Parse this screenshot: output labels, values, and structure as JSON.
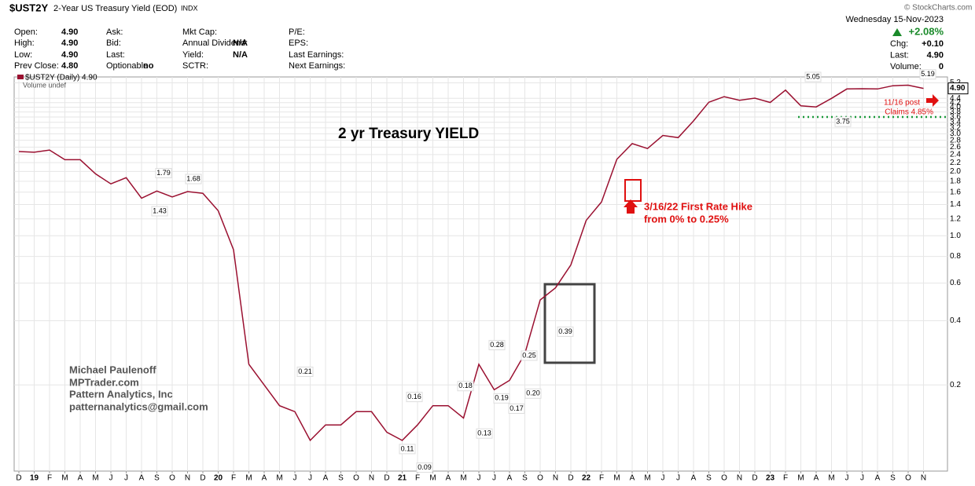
{
  "header": {
    "symbol": "$UST2Y",
    "name": "2-Year US Treasury Yield (EOD)",
    "exchange": "INDX",
    "date": "Wednesday  15-Nov-2023",
    "copyright": "© StockCharts.com",
    "change_pct": "+2.08%",
    "quote_columns": [
      [
        {
          "label": "Open:",
          "value": "4.90"
        },
        {
          "label": "High:",
          "value": "4.90"
        },
        {
          "label": "Low:",
          "value": "4.90"
        },
        {
          "label": "Prev Close:",
          "value": "4.80"
        }
      ],
      [
        {
          "label": "Ask:"
        },
        {
          "label": "Bid:"
        },
        {
          "label": "Last:"
        },
        {
          "label": "Optionable",
          "value": "no"
        }
      ],
      [
        {
          "label": "Mkt Cap:"
        },
        {
          "label": "Annual Dividend:",
          "value": "N/A"
        },
        {
          "label": "Yield:",
          "value": "N/A"
        },
        {
          "label": "SCTR:"
        }
      ],
      [
        {
          "label": "P/E:"
        },
        {
          "label": "EPS:"
        },
        {
          "label": "Last Earnings:"
        },
        {
          "label": "Next Earnings:"
        }
      ]
    ],
    "summary": [
      {
        "label": "Chg:",
        "value": "+0.10"
      },
      {
        "label": "Last:",
        "value": "4.90"
      },
      {
        "label": "Volume:",
        "value": "0"
      }
    ]
  },
  "chart_data": {
    "type": "line",
    "title": "2 yr Treasury YIELD",
    "legend": "$UST2Y (Daily) 4.90",
    "volume_note": "Volume undef",
    "log_scale": true,
    "grid": true,
    "categories": [
      "D",
      "19",
      "F",
      "M",
      "A",
      "M",
      "J",
      "J",
      "A",
      "S",
      "O",
      "N",
      "D",
      "20",
      "F",
      "M",
      "A",
      "M",
      "J",
      "J",
      "A",
      "S",
      "O",
      "N",
      "D",
      "21",
      "F",
      "M",
      "A",
      "M",
      "J",
      "J",
      "A",
      "S",
      "O",
      "N",
      "D",
      "22",
      "F",
      "M",
      "A",
      "M",
      "J",
      "J",
      "A",
      "S",
      "O",
      "N",
      "D",
      "23",
      "F",
      "M",
      "A",
      "M",
      "J",
      "J",
      "A",
      "S",
      "O",
      "N"
    ],
    "series": [
      {
        "name": "$UST2Y",
        "color": "#9a1030",
        "values": [
          2.48,
          2.46,
          2.52,
          2.27,
          2.27,
          1.95,
          1.75,
          1.87,
          1.5,
          1.62,
          1.52,
          1.61,
          1.58,
          1.31,
          0.86,
          0.25,
          0.2,
          0.16,
          0.15,
          0.11,
          0.13,
          0.13,
          0.15,
          0.15,
          0.12,
          0.11,
          0.13,
          0.16,
          0.16,
          0.14,
          0.25,
          0.19,
          0.21,
          0.28,
          0.5,
          0.57,
          0.73,
          1.18,
          1.44,
          2.28,
          2.7,
          2.56,
          2.95,
          2.88,
          3.45,
          4.22,
          4.48,
          4.31,
          4.41,
          4.21,
          4.81,
          4.06,
          4.01,
          4.4,
          4.87,
          4.88,
          4.87,
          5.04,
          5.07,
          4.9
        ]
      }
    ],
    "ylim": [
      0.079,
      5.45
    ],
    "yticks": [
      0.2,
      0.4,
      0.6,
      0.8,
      {
        "value": 1.0,
        "label": "1.0"
      },
      1.2,
      1.4,
      1.6,
      1.8,
      {
        "value": 2.0,
        "label": "2.0"
      },
      2.2,
      2.4,
      2.6,
      2.8,
      {
        "value": 3.0,
        "label": "3.0"
      },
      3.2,
      3.4,
      3.6,
      3.8,
      {
        "value": 4.0,
        "label": "4.0"
      },
      4.2,
      4.4,
      5.2
    ],
    "last_price": {
      "value": 4.9,
      "label": "4.90"
    },
    "point_labels": [
      1.79,
      1.68,
      1.43,
      0.21,
      0.16,
      0.11,
      0.09,
      0.18,
      0.13,
      0.28,
      0.19,
      0.17,
      0.25,
      {
        "value": 0.2,
        "label": "0.20"
      },
      0.39,
      5.05,
      3.75,
      5.19
    ],
    "support_line": {
      "value": 3.6,
      "color": "#1a9a3a"
    },
    "annotations": {
      "rate_hike": [
        "3/16/22 First Rate Hike",
        "from 0% to 0.25%"
      ],
      "claims": [
        "11/16 post",
        "Claims 4.85%"
      ],
      "author": [
        "Michael Paulenoff",
        "MPTrader.com",
        "Pattern Analytics, Inc",
        "patternanalytics@gmail.com"
      ]
    }
  }
}
